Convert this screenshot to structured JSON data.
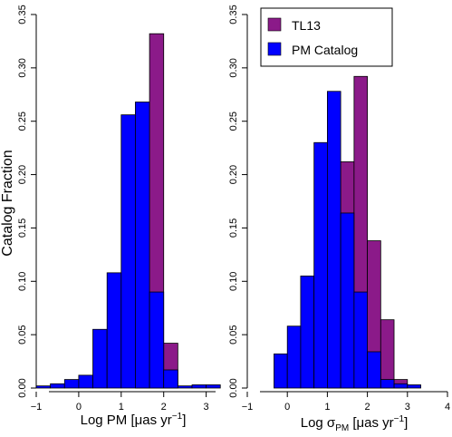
{
  "chart_data": [
    {
      "type": "bar",
      "xlabel": "Log PM  [μas  yr⁻¹]",
      "ylabel": "Catalog Fraction",
      "xlim": [
        -1,
        3.2
      ],
      "ylim": [
        0,
        0.35
      ],
      "x_ticks": [
        "−1",
        "0",
        "1",
        "2",
        "3"
      ],
      "y_ticks": [
        "0.00",
        "0.05",
        "0.10",
        "0.15",
        "0.20",
        "0.25",
        "0.30",
        "0.35"
      ],
      "bin_width": 0.333,
      "bin_left_edges": [
        -1.0,
        -0.667,
        -0.333,
        0.0,
        0.333,
        0.667,
        1.0,
        1.333,
        1.667,
        2.0,
        2.333,
        2.667,
        3.0
      ],
      "series": [
        {
          "name": "TL13",
          "color": "#8B1A89",
          "values": [
            0,
            0,
            0,
            0,
            0,
            0,
            0,
            0.259,
            0.332,
            0.042,
            0,
            0,
            0
          ]
        },
        {
          "name": "PM Catalog",
          "color": "#0000FF",
          "values": [
            0.002,
            0.004,
            0.008,
            0.012,
            0.055,
            0.108,
            0.256,
            0.268,
            0.09,
            0.017,
            0.002,
            0.003,
            0.003
          ]
        }
      ]
    },
    {
      "type": "bar",
      "xlabel": "Log  σ_PM  [μas  yr⁻¹]",
      "xlabel_parts": {
        "pre": "Log  σ",
        "sub": "PM",
        "post": "  [μas  yr",
        "sup": "−1",
        "end": "]"
      },
      "ylabel": "",
      "xlim": [
        -1,
        4
      ],
      "ylim": [
        0,
        0.35
      ],
      "x_ticks": [
        "−1",
        "0",
        "1",
        "2",
        "3",
        "4"
      ],
      "y_ticks": [
        "0.00",
        "0.05",
        "0.10",
        "0.15",
        "0.20",
        "0.25",
        "0.30",
        "0.35"
      ],
      "bin_width": 0.333,
      "bin_left_edges": [
        -1.0,
        -0.667,
        -0.333,
        0.0,
        0.333,
        0.667,
        1.0,
        1.333,
        1.667,
        2.0,
        2.333,
        2.667,
        3.0
      ],
      "series": [
        {
          "name": "TL13",
          "color": "#8B1A89",
          "values": [
            0,
            0,
            0,
            0,
            0,
            0,
            0.162,
            0.212,
            0.292,
            0.138,
            0.064,
            0.008,
            0
          ]
        },
        {
          "name": "PM Catalog",
          "color": "#0000FF",
          "values": [
            0,
            0,
            0.032,
            0.058,
            0.105,
            0.23,
            0.278,
            0.164,
            0.09,
            0.034,
            0.008,
            0.004,
            0.003
          ]
        }
      ],
      "legend": {
        "position": "top-right"
      }
    }
  ],
  "legend_items": [
    {
      "label": "TL13",
      "color": "#8B1A89"
    },
    {
      "label": "PM Catalog",
      "color": "#0000FF"
    }
  ]
}
